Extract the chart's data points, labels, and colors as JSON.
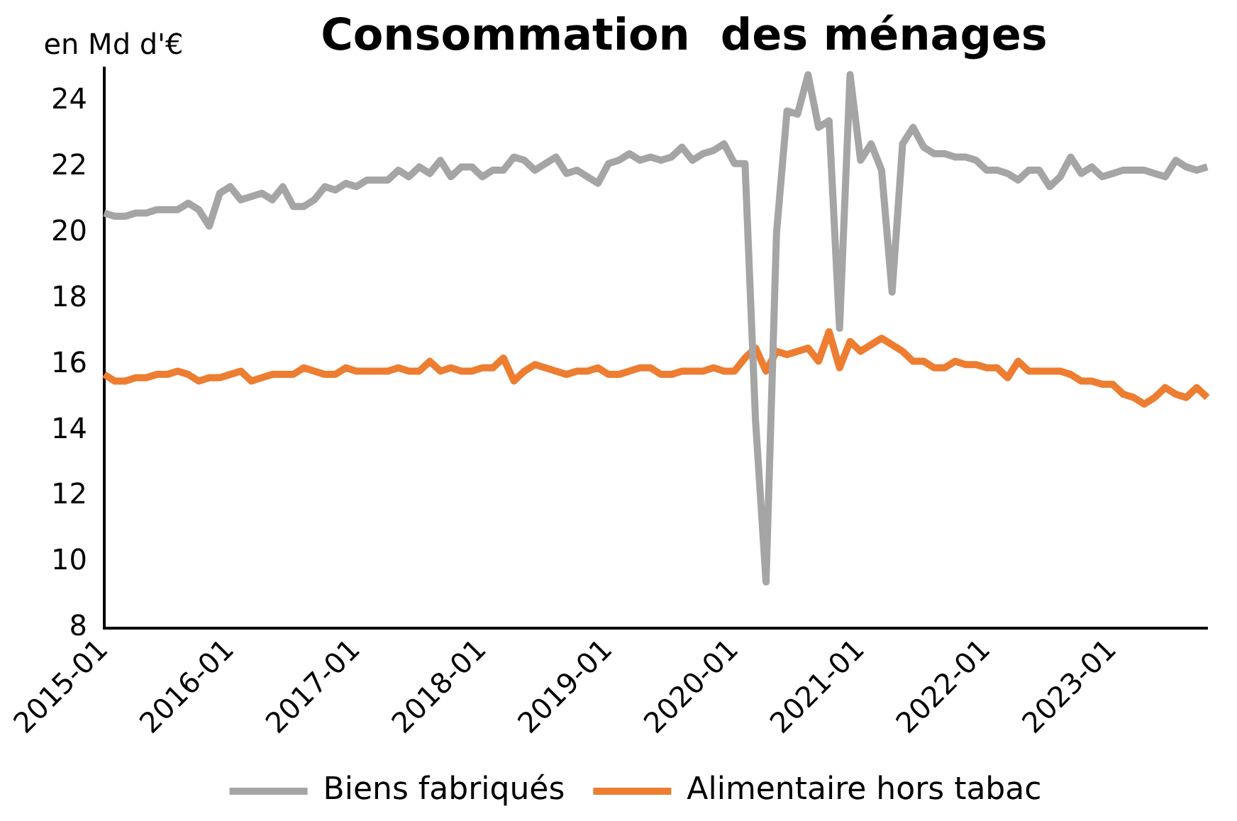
{
  "chart_data": {
    "type": "line",
    "title": "Consommation  des ménages",
    "ylabel": "en Md d'€",
    "categories": [
      "2015-01",
      null,
      null,
      null,
      null,
      null,
      null,
      null,
      null,
      null,
      null,
      null,
      "2016-01",
      null,
      null,
      null,
      null,
      null,
      null,
      null,
      null,
      null,
      null,
      null,
      "2017-01",
      null,
      null,
      null,
      null,
      null,
      null,
      null,
      null,
      null,
      null,
      null,
      "2018-01",
      null,
      null,
      null,
      null,
      null,
      null,
      null,
      null,
      null,
      null,
      null,
      "2019-01",
      null,
      null,
      null,
      null,
      null,
      null,
      null,
      null,
      null,
      null,
      null,
      "2020-01",
      null,
      null,
      null,
      null,
      null,
      null,
      null,
      null,
      null,
      null,
      null,
      "2021-01",
      null,
      null,
      null,
      null,
      null,
      null,
      null,
      null,
      null,
      null,
      null,
      "2022-01",
      null,
      null,
      null,
      null,
      null,
      null,
      null,
      null,
      null,
      null,
      null,
      "2023-01",
      null,
      null,
      null,
      null,
      null,
      null,
      null,
      null,
      null
    ],
    "series": [
      {
        "name": "Biens fabriqués",
        "color": "#a5a5a5",
        "values": [
          20.6,
          20.5,
          20.5,
          20.6,
          20.6,
          20.7,
          20.7,
          20.7,
          20.9,
          20.7,
          20.2,
          21.2,
          21.4,
          21.0,
          21.1,
          21.2,
          21.0,
          21.4,
          20.8,
          20.8,
          21.0,
          21.4,
          21.3,
          21.5,
          21.4,
          21.6,
          21.6,
          21.6,
          21.9,
          21.7,
          22.0,
          21.8,
          22.2,
          21.7,
          22.0,
          22.0,
          21.7,
          21.9,
          21.9,
          22.3,
          22.2,
          21.9,
          22.1,
          22.3,
          21.8,
          21.9,
          21.7,
          21.5,
          22.1,
          22.2,
          22.4,
          22.2,
          22.3,
          22.2,
          22.3,
          22.6,
          22.2,
          22.4,
          22.5,
          22.7,
          22.1,
          22.1,
          14.3,
          9.4,
          20.0,
          23.7,
          23.6,
          24.8,
          23.2,
          23.4,
          17.1,
          24.8,
          22.2,
          22.7,
          21.9,
          18.2,
          22.7,
          23.2,
          22.6,
          22.4,
          22.4,
          22.3,
          22.3,
          22.2,
          21.9,
          21.9,
          21.8,
          21.6,
          21.9,
          21.9,
          21.4,
          21.7,
          22.3,
          21.8,
          22.0,
          21.7,
          21.8,
          21.9,
          21.9,
          21.9,
          21.8,
          21.7,
          22.2,
          22.0,
          21.9,
          22.0
        ]
      },
      {
        "name": "Alimentaire hors tabac",
        "color": "#ed7d31",
        "values": [
          15.7,
          15.5,
          15.5,
          15.6,
          15.6,
          15.7,
          15.7,
          15.8,
          15.7,
          15.5,
          15.6,
          15.6,
          15.7,
          15.8,
          15.5,
          15.6,
          15.7,
          15.7,
          15.7,
          15.9,
          15.8,
          15.7,
          15.7,
          15.9,
          15.8,
          15.8,
          15.8,
          15.8,
          15.9,
          15.8,
          15.8,
          16.1,
          15.8,
          15.9,
          15.8,
          15.8,
          15.9,
          15.9,
          16.2,
          15.5,
          15.8,
          16.0,
          15.9,
          15.8,
          15.7,
          15.8,
          15.8,
          15.9,
          15.7,
          15.7,
          15.8,
          15.9,
          15.9,
          15.7,
          15.7,
          15.8,
          15.8,
          15.8,
          15.9,
          15.8,
          15.8,
          16.2,
          16.5,
          15.8,
          16.4,
          16.3,
          16.4,
          16.5,
          16.1,
          17.0,
          15.9,
          16.7,
          16.4,
          16.6,
          16.8,
          16.6,
          16.4,
          16.1,
          16.1,
          15.9,
          15.9,
          16.1,
          16.0,
          16.0,
          15.9,
          15.9,
          15.6,
          16.1,
          15.8,
          15.8,
          15.8,
          15.8,
          15.7,
          15.5,
          15.5,
          15.4,
          15.4,
          15.1,
          15.0,
          14.8,
          15.0,
          15.3,
          15.1,
          15.0,
          15.3,
          15.0
        ]
      }
    ],
    "ylim": [
      8,
      25
    ],
    "yticks": [
      8,
      10,
      12,
      14,
      16,
      18,
      20,
      22,
      24
    ],
    "grid": false,
    "legend": "bottom",
    "marker": "none"
  }
}
